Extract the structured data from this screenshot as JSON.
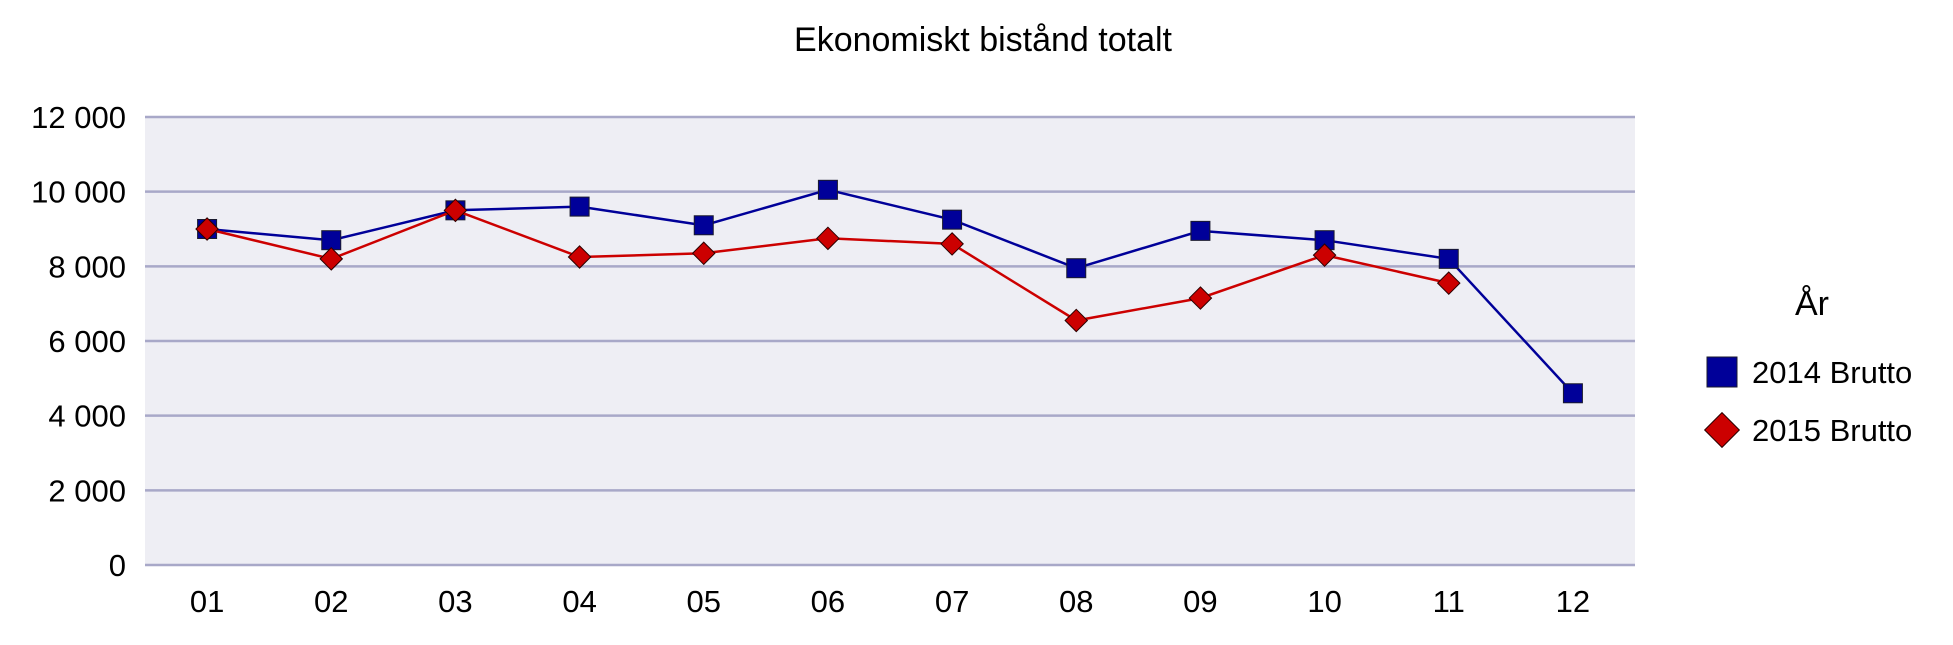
{
  "chart_data": {
    "type": "line",
    "title": "Ekonomiskt bistånd totalt",
    "xlabel": "",
    "ylabel": "",
    "categories": [
      "01",
      "02",
      "03",
      "04",
      "05",
      "06",
      "07",
      "08",
      "09",
      "10",
      "11",
      "12"
    ],
    "ylim": [
      0,
      12000
    ],
    "y_ticks": [
      {
        "value": 0,
        "label": "0"
      },
      {
        "value": 2000,
        "label": "2 000"
      },
      {
        "value": 4000,
        "label": "4 000"
      },
      {
        "value": 6000,
        "label": "6 000"
      },
      {
        "value": 8000,
        "label": "8 000"
      },
      {
        "value": 10000,
        "label": "10 000"
      },
      {
        "value": 12000,
        "label": "12 000"
      }
    ],
    "grid": true,
    "legend": {
      "title": "År",
      "position": "right"
    },
    "series": [
      {
        "name": "2014 Brutto",
        "color": "#000099",
        "marker": "square",
        "values": [
          9000,
          8700,
          9500,
          9600,
          9100,
          10050,
          9250,
          7950,
          8950,
          8700,
          8200,
          4600
        ]
      },
      {
        "name": "2015 Brutto",
        "color": "#cc0000",
        "marker": "diamond",
        "values": [
          9000,
          8200,
          9500,
          8250,
          8350,
          8750,
          8600,
          6550,
          7150,
          8300,
          7550,
          null
        ]
      }
    ]
  }
}
